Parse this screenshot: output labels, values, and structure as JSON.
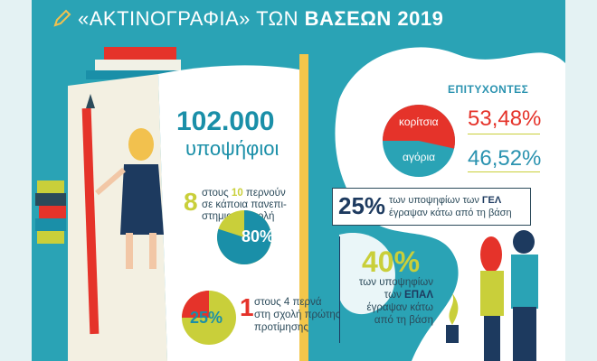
{
  "header": {
    "title_prefix": "«ΑΚΤΙΝΟΓΡΑΦΙΑ» ΤΩΝ",
    "title_bold": "ΒΑΣΕΩΝ 2019"
  },
  "candidates": {
    "number": "102.000",
    "label": "υποψήφιοι"
  },
  "university": {
    "num_a": "8",
    "line1_a": "στους",
    "num_b": "10",
    "line1_b": "περνούν",
    "line2": "σε κάποια πανεπι-",
    "line3": "στημιακή σχολή",
    "percent": "80%"
  },
  "first_choice": {
    "num_a": "1",
    "line1": "στους 4 περνά",
    "line2": "στη σχολή πρώτης",
    "line3": "προτίμησης",
    "percent": "25%"
  },
  "success": {
    "heading": "ΕΠΙΤΥΧΟΝΤΕΣ",
    "girls_label": "κορίτσια",
    "girls_pct": "53,48%",
    "boys_label": "αγόρια",
    "boys_pct": "46,52%"
  },
  "gel": {
    "percent": "25%",
    "line1_a": "των υποψηφίων των",
    "line1_b": "ΓΕΛ",
    "line2": "έγραψαν κάτω από τη βάση"
  },
  "epal": {
    "percent": "40%",
    "line1": "των υποψηφίων",
    "line2_a": "των",
    "line2_b": "ΕΠΑΛ",
    "line3": "έγραψαν κάτω",
    "line4": "από τη βάση"
  },
  "pies": {
    "university_fraction": 0.8,
    "first_choice_fraction": 0.25,
    "girls_fraction": 0.5348
  },
  "colors": {
    "teal": "#2aa3b5",
    "red": "#e5332a",
    "yellow_green": "#c9cf3a",
    "blue": "#1a8fa8",
    "white": "#ffffff",
    "navy": "#1d3a5f"
  }
}
